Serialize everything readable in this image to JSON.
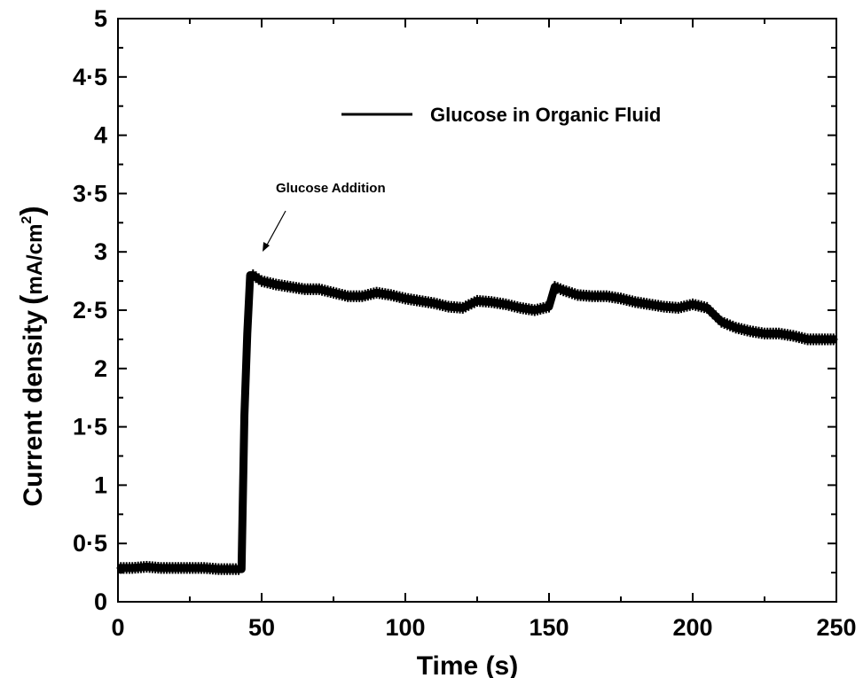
{
  "chart_data": {
    "type": "line",
    "title": "",
    "xlabel": "Time (s)",
    "ylabel": "Current density",
    "ylabel_unit": "mA/cm",
    "ylabel_unit_sup": "2",
    "xlim": [
      0,
      250
    ],
    "ylim": [
      0,
      5
    ],
    "x_ticks": [
      0,
      50,
      100,
      150,
      200,
      250
    ],
    "x_tick_labels": [
      "0",
      "50",
      "100",
      "150",
      "200",
      "250"
    ],
    "y_ticks": [
      0,
      0.5,
      1,
      1.5,
      2,
      2.5,
      3,
      3.5,
      4,
      4.5,
      5
    ],
    "y_tick_labels": [
      "0",
      "0·5",
      "1",
      "1·5",
      "2",
      "2·5",
      "3",
      "3·5",
      "4",
      "4·5",
      "5"
    ],
    "grid": false,
    "legend": {
      "position": "top-right",
      "entries": [
        "Glucose in Organic Fluid"
      ]
    },
    "series": [
      {
        "name": "Glucose in Organic Fluid",
        "color": "#000000",
        "x": [
          0,
          5,
          10,
          15,
          20,
          25,
          30,
          35,
          40,
          43,
          44,
          45,
          46,
          47,
          50,
          55,
          60,
          65,
          70,
          75,
          80,
          85,
          90,
          95,
          100,
          105,
          110,
          115,
          120,
          125,
          130,
          135,
          140,
          145,
          150,
          152,
          155,
          160,
          165,
          170,
          175,
          180,
          185,
          190,
          195,
          200,
          205,
          210,
          215,
          220,
          225,
          230,
          235,
          240,
          245,
          250
        ],
        "y": [
          0.29,
          0.29,
          0.3,
          0.29,
          0.29,
          0.29,
          0.29,
          0.28,
          0.28,
          0.28,
          1.6,
          2.3,
          2.8,
          2.8,
          2.75,
          2.72,
          2.7,
          2.68,
          2.68,
          2.65,
          2.62,
          2.62,
          2.65,
          2.63,
          2.6,
          2.58,
          2.56,
          2.53,
          2.52,
          2.58,
          2.57,
          2.55,
          2.52,
          2.5,
          2.53,
          2.7,
          2.67,
          2.63,
          2.62,
          2.62,
          2.6,
          2.57,
          2.55,
          2.53,
          2.52,
          2.55,
          2.52,
          2.4,
          2.35,
          2.32,
          2.3,
          2.3,
          2.28,
          2.25,
          2.25,
          2.25
        ]
      }
    ],
    "band_half_width": 0.05,
    "annotations": [
      {
        "text": "Glucose Addition",
        "x": 47,
        "y": 3.0
      }
    ]
  }
}
